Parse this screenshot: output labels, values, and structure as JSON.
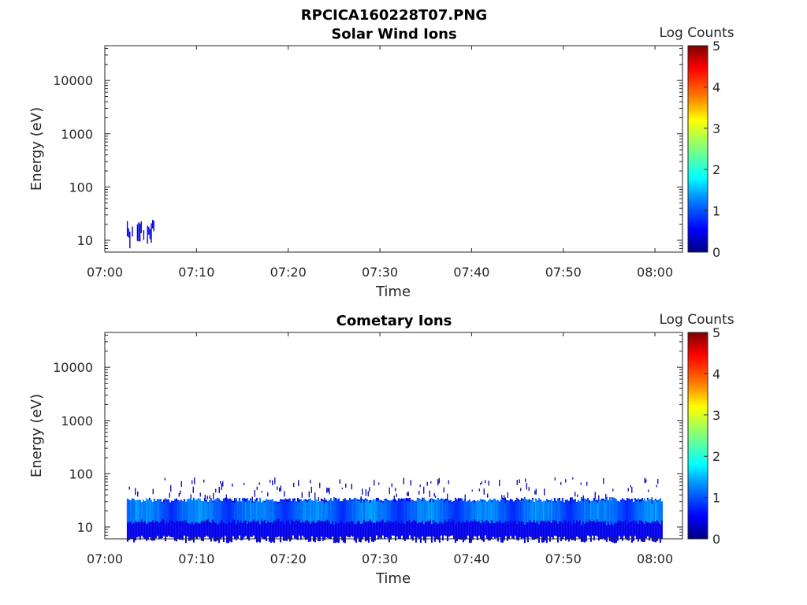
{
  "figure_title": "RPCICA160228T07.PNG",
  "colors": {
    "axis": "#262626",
    "colormap": [
      "#00007f",
      "#0000ff",
      "#007fff",
      "#00ffff",
      "#7fff7f",
      "#ffff00",
      "#ff7f00",
      "#ff0000",
      "#7f0000"
    ]
  },
  "chart_data": [
    {
      "type": "heatmap",
      "title": "Solar Wind Ions",
      "xlabel": "Time",
      "ylabel": "Energy (eV)",
      "x_ticks": [
        "07:00",
        "07:10",
        "07:20",
        "07:30",
        "07:40",
        "07:50",
        "08:00"
      ],
      "x_range_minutes": [
        0,
        63
      ],
      "y_scale": "log",
      "y_ticks": [
        "10",
        "100",
        "1000",
        "10000"
      ],
      "y_range": [
        6,
        45000
      ],
      "colorbar": {
        "label": "Log Counts",
        "range": [
          0,
          5
        ],
        "ticks": [
          "0",
          "1",
          "2",
          "3",
          "4",
          "5"
        ]
      },
      "activity": [
        {
          "t_start_min": 2.4,
          "t_end_min": 5.4,
          "e_low_eV": 7,
          "e_high_eV": 30,
          "log_counts": 0.5
        }
      ]
    },
    {
      "type": "heatmap",
      "title": "Cometary Ions",
      "xlabel": "Time",
      "ylabel": "Energy (eV)",
      "x_ticks": [
        "07:00",
        "07:10",
        "07:20",
        "07:30",
        "07:40",
        "07:50",
        "08:00"
      ],
      "x_range_minutes": [
        0,
        63
      ],
      "y_scale": "log",
      "y_ticks": [
        "10",
        "100",
        "1000",
        "10000"
      ],
      "y_range": [
        6,
        45000
      ],
      "colorbar": {
        "label": "Log Counts",
        "range": [
          0,
          5
        ],
        "ticks": [
          "0",
          "1",
          "2",
          "3",
          "4",
          "5"
        ]
      },
      "activity": [
        {
          "t_start_min": 2.4,
          "t_end_min": 60.8,
          "e_low_eV": 7,
          "e_high_eV": 32,
          "peak_eV": 20,
          "log_counts": 1.5
        },
        {
          "t_start_min": 2.5,
          "t_end_min": 60.5,
          "e_low_eV": 35,
          "e_high_eV": 85,
          "log_counts": 0.3,
          "sparse": true
        }
      ]
    }
  ]
}
